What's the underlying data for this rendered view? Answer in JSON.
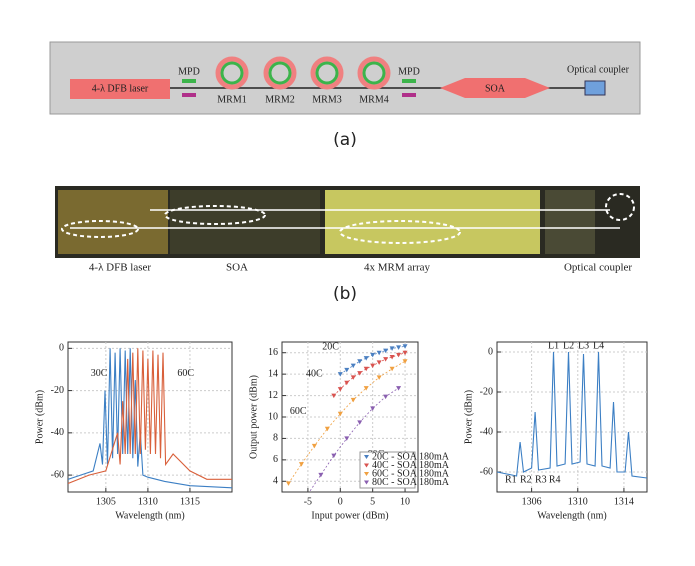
{
  "diagram_a": {
    "laser": "4-λ DFB laser",
    "mpd_left": "MPD",
    "mpd_right": "MPD",
    "mrms": [
      "MRM1",
      "MRM2",
      "MRM3",
      "MRM4"
    ],
    "soa": "SOA",
    "coupler": "Optical coupler",
    "caption": "(a)"
  },
  "photo_b": {
    "laser": "4-λ DFB laser",
    "soa": "SOA",
    "mrm_array": "4x MRM array",
    "coupler": "Optical coupler",
    "caption": "(b)"
  },
  "chart_data": [
    {
      "type": "line",
      "x_label": "Wavelength (nm)",
      "y_label": "Power (dBm)",
      "xlim": [
        1300.5,
        1320
      ],
      "ylim": [
        -68,
        3
      ],
      "xticks": [
        1305,
        1310,
        1315
      ],
      "yticks": [
        0,
        -20,
        -40,
        -60
      ],
      "grid": true,
      "annotations": [
        "30C",
        "60C"
      ],
      "series": [
        {
          "color": "#3c7fc4",
          "x": [
            1300.5,
            1302,
            1303.5,
            1304.3,
            1304.6,
            1304.9,
            1305.2,
            1305.5,
            1305.8,
            1306.1,
            1306.4,
            1306.7,
            1307.0,
            1307.3,
            1307.6,
            1307.9,
            1308.2,
            1308.5,
            1308.8,
            1309.1,
            1309.4,
            1310,
            1312,
            1315,
            1320
          ],
          "values": [
            -62,
            -60,
            -58,
            -45,
            -55,
            -20,
            -55,
            0,
            -52,
            -2,
            -50,
            0,
            -50,
            -1,
            -50,
            0,
            -52,
            -15,
            -56,
            -40,
            -60,
            -61,
            -63,
            -65,
            -66
          ]
        },
        {
          "color": "#d9603b",
          "x": [
            1300.5,
            1303,
            1305,
            1306.4,
            1306.7,
            1307.0,
            1307.3,
            1307.6,
            1307.9,
            1308.2,
            1308.5,
            1308.8,
            1309.1,
            1309.4,
            1309.7,
            1310.0,
            1310.3,
            1310.6,
            1310.9,
            1311.2,
            1311.5,
            1311.8,
            1312.1,
            1313,
            1315,
            1317,
            1320
          ],
          "values": [
            -64,
            -60,
            -58,
            -40,
            -55,
            -25,
            -50,
            -5,
            -50,
            -2,
            -50,
            0,
            -50,
            -1,
            -48,
            -5,
            -50,
            -1,
            -50,
            -3,
            -52,
            -2,
            -55,
            -50,
            -58,
            -62,
            -62
          ]
        }
      ]
    },
    {
      "type": "scatter",
      "x_label": "Input power (dBm)",
      "y_label": "Output power (dBm)",
      "xlim": [
        -9,
        12
      ],
      "ylim": [
        3,
        17
      ],
      "xticks": [
        -5,
        0,
        5,
        10
      ],
      "yticks": [
        4,
        6,
        8,
        10,
        12,
        14,
        16
      ],
      "grid": true,
      "annotations": [
        "20C",
        "40C",
        "60C",
        "80C"
      ],
      "series": [
        {
          "name": "20C - SOA 180mA",
          "color": "#4a7fc1",
          "x": [
            0,
            1,
            2,
            3,
            4,
            5,
            6,
            7,
            8,
            9,
            10
          ],
          "values": [
            14.0,
            14.4,
            14.8,
            15.2,
            15.5,
            15.8,
            16.0,
            16.2,
            16.4,
            16.5,
            16.6
          ]
        },
        {
          "name": "40C - SOA 180mA",
          "color": "#d9534f",
          "x": [
            -1,
            0,
            1,
            2,
            3,
            4,
            5,
            6,
            7,
            8,
            9,
            10
          ],
          "values": [
            12,
            12.6,
            13.2,
            13.7,
            14.1,
            14.5,
            14.8,
            15.1,
            15.4,
            15.6,
            15.8,
            16.0
          ]
        },
        {
          "name": "60C - SOA 180mA",
          "color": "#f0a040",
          "x": [
            -8,
            -6,
            -4,
            -2,
            0,
            2,
            4,
            6,
            8,
            10
          ],
          "values": [
            3.8,
            5.6,
            7.3,
            8.9,
            10.3,
            11.6,
            12.7,
            13.7,
            14.5,
            15.2
          ]
        },
        {
          "name": "80C - SOA 180mA",
          "color": "#8a5fb0",
          "x": [
            -5,
            -3,
            -1,
            1,
            3,
            5,
            7,
            9
          ],
          "values": [
            2.8,
            4.6,
            6.4,
            8.0,
            9.5,
            10.8,
            11.9,
            12.7
          ]
        }
      ]
    },
    {
      "type": "line",
      "x_label": "Wavelength (nm)",
      "y_label": "Power (dBm)",
      "xlim": [
        1303,
        1316
      ],
      "ylim": [
        -70,
        5
      ],
      "xticks": [
        1306,
        1310,
        1314
      ],
      "yticks": [
        0,
        -20,
        -40,
        -60
      ],
      "grid": true,
      "annotations": [
        "L1",
        "L2",
        "L3",
        "L4",
        "R1",
        "R2",
        "R3",
        "R4"
      ],
      "series": [
        {
          "color": "#3c7fc4",
          "x": [
            1303,
            1304.7,
            1305.0,
            1305.3,
            1306.0,
            1306.3,
            1306.6,
            1307.6,
            1307.9,
            1308.2,
            1308.9,
            1309.2,
            1309.5,
            1310.2,
            1310.5,
            1310.8,
            1311.5,
            1311.8,
            1312.1,
            1312.8,
            1313.1,
            1313.4,
            1314.1,
            1314.4,
            1314.7,
            1316
          ],
          "values": [
            -60,
            -62,
            -45,
            -60,
            -58,
            -30,
            -59,
            -58,
            0,
            -57,
            -56,
            0,
            -56,
            -55,
            -1,
            -56,
            -57,
            0,
            -57,
            -58,
            -25,
            -60,
            -60,
            -40,
            -62,
            -63
          ]
        }
      ]
    }
  ]
}
